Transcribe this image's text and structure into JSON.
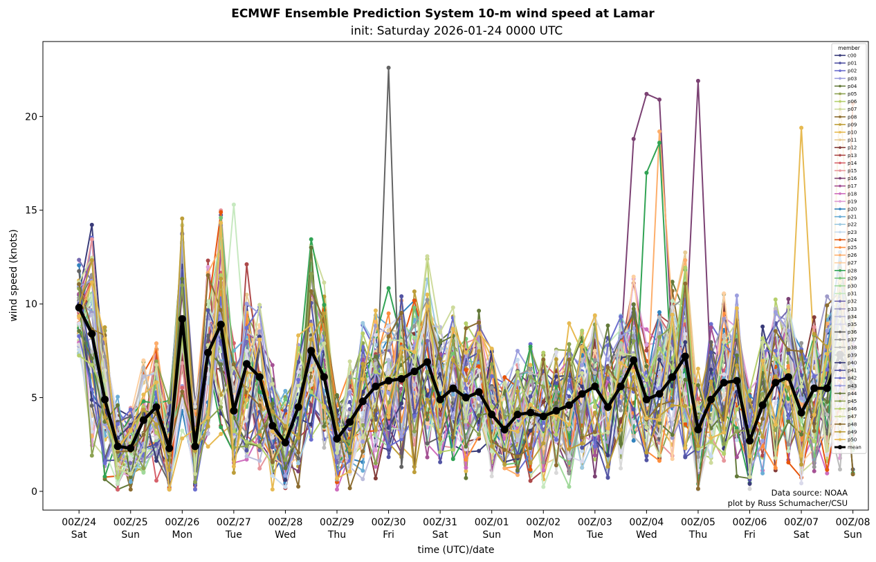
{
  "chart_data": {
    "type": "line",
    "title": "ECMWF Ensemble Prediction System 10-m wind speed at Lamar",
    "subtitle": "init: Saturday 2026-01-24 0000 UTC",
    "xlabel": "time (UTC)/date",
    "ylabel": "wind speed (knots)",
    "ylim": [
      -1,
      24
    ],
    "yticks": [
      0,
      5,
      10,
      15,
      20
    ],
    "xlim": [
      -0.7,
      15.3
    ],
    "xticks": [
      {
        "x": 0,
        "hour": "00Z/24",
        "day": "Sat"
      },
      {
        "x": 1,
        "hour": "00Z/25",
        "day": "Sun"
      },
      {
        "x": 2,
        "hour": "00Z/26",
        "day": "Mon"
      },
      {
        "x": 3,
        "hour": "00Z/27",
        "day": "Tue"
      },
      {
        "x": 4,
        "hour": "00Z/28",
        "day": "Wed"
      },
      {
        "x": 5,
        "hour": "00Z/29",
        "day": "Thu"
      },
      {
        "x": 6,
        "hour": "00Z/30",
        "day": "Fri"
      },
      {
        "x": 7,
        "hour": "00Z/31",
        "day": "Sat"
      },
      {
        "x": 8,
        "hour": "00Z/01",
        "day": "Sun"
      },
      {
        "x": 9,
        "hour": "00Z/02",
        "day": "Mon"
      },
      {
        "x": 10,
        "hour": "00Z/03",
        "day": "Tue"
      },
      {
        "x": 11,
        "hour": "00Z/04",
        "day": "Wed"
      },
      {
        "x": 12,
        "hour": "00Z/05",
        "day": "Thu"
      },
      {
        "x": 13,
        "hour": "00Z/06",
        "day": "Fri"
      },
      {
        "x": 14,
        "hour": "00Z/07",
        "day": "Sat"
      },
      {
        "x": 15,
        "hour": "00Z/08",
        "day": "Sun"
      }
    ],
    "x": [
      0,
      0.25,
      0.5,
      0.75,
      1,
      1.25,
      1.5,
      1.75,
      2,
      2.25,
      2.5,
      2.75,
      3,
      3.25,
      3.5,
      3.75,
      4,
      4.25,
      4.5,
      4.75,
      5,
      5.25,
      5.5,
      5.75,
      6,
      6.25,
      6.5,
      6.75,
      7,
      7.25,
      7.5,
      7.75,
      8,
      8.25,
      8.5,
      8.75,
      9,
      9.25,
      9.5,
      9.75,
      10,
      10.25,
      10.5,
      10.75,
      11,
      11.25,
      11.5,
      11.75,
      12,
      12.25,
      12.5,
      12.75,
      13,
      13.25,
      13.5,
      13.75,
      14,
      14.25,
      14.5,
      14.75,
      15
    ],
    "legend_title": "member",
    "legend_position": "upper right",
    "grid": false,
    "members": [
      "c00",
      "p01",
      "p02",
      "p03",
      "p04",
      "p05",
      "p06",
      "p07",
      "p08",
      "p09",
      "p10",
      "p11",
      "p12",
      "p13",
      "p14",
      "p15",
      "p16",
      "p17",
      "p18",
      "p19",
      "p20",
      "p21",
      "p22",
      "p23",
      "p24",
      "p25",
      "p26",
      "p27",
      "p28",
      "p29",
      "p30",
      "p31",
      "p32",
      "p33",
      "p34",
      "p35",
      "p36",
      "p37",
      "p38",
      "p39",
      "p40",
      "p41",
      "p42",
      "p43",
      "p44",
      "p45",
      "p46",
      "p47",
      "p48",
      "p49",
      "p50"
    ],
    "member_colors": [
      "#393b79",
      "#5254a3",
      "#6b6ecf",
      "#9c9ede",
      "#637939",
      "#8ca252",
      "#b5cf6b",
      "#cedb9c",
      "#8c6d31",
      "#bd9e39",
      "#e7ba52",
      "#e7cb94",
      "#843c39",
      "#ad494a",
      "#d6616b",
      "#e7969c",
      "#7b4173",
      "#a55194",
      "#ce6dbd",
      "#de9ed6",
      "#3182bd",
      "#6baed6",
      "#9ecae1",
      "#c6dbef",
      "#e6550d",
      "#fd8d3c",
      "#fdae6b",
      "#fdd0a2",
      "#31a354",
      "#74c476",
      "#a1d99b",
      "#c7e9c0",
      "#756bb1",
      "#9e9ac8",
      "#bcbddc",
      "#dadaeb",
      "#636363",
      "#969696",
      "#bdbdbd",
      "#d9d9d9",
      "#393b79",
      "#5254a3",
      "#6b6ecf",
      "#9c9ede",
      "#637939",
      "#8ca252",
      "#b5cf6b",
      "#cedb9c",
      "#8c6d31",
      "#bd9e39",
      "#e7ba52"
    ],
    "members_note_highlights": {
      "p16": [
        [
          10.75,
          18.8
        ],
        [
          11,
          21.2
        ],
        [
          11.25,
          20.9
        ],
        [
          12,
          21.9
        ]
      ],
      "p36": [
        [
          6,
          22.6
        ]
      ],
      "p10": [
        [
          14.75,
          21.2
        ],
        [
          14,
          19.4
        ]
      ],
      "p24": [
        [
          15,
          20.7
        ]
      ],
      "p28": [
        [
          11,
          17.0
        ],
        [
          11.25,
          18.6
        ]
      ],
      "p26": [
        [
          11.25,
          19.2
        ]
      ],
      "p31": [
        [
          3,
          15.3
        ]
      ]
    },
    "mean": {
      "name": "mean",
      "color": "#000000",
      "values": [
        9.8,
        8.4,
        4.9,
        2.4,
        2.3,
        3.8,
        4.5,
        2.3,
        9.2,
        2.4,
        7.4,
        8.9,
        4.3,
        6.8,
        6.1,
        3.5,
        2.6,
        4.5,
        7.5,
        6.1,
        2.8,
        3.7,
        4.8,
        5.6,
        5.9,
        6.0,
        6.4,
        6.9,
        4.9,
        5.5,
        5.0,
        5.3,
        4.1,
        3.3,
        4.1,
        4.2,
        4.0,
        4.3,
        4.6,
        5.2,
        5.6,
        4.5,
        5.6,
        7.0,
        4.9,
        5.2,
        6.1,
        7.2,
        3.3,
        4.9,
        5.8,
        5.9,
        2.7,
        4.6,
        5.8,
        6.1,
        4.2,
        5.5,
        5.5,
        7.3,
        5.6
      ]
    }
  },
  "credits": {
    "source": "Data source: NOAA",
    "author": "plot by Russ Schumacher/CSU"
  }
}
